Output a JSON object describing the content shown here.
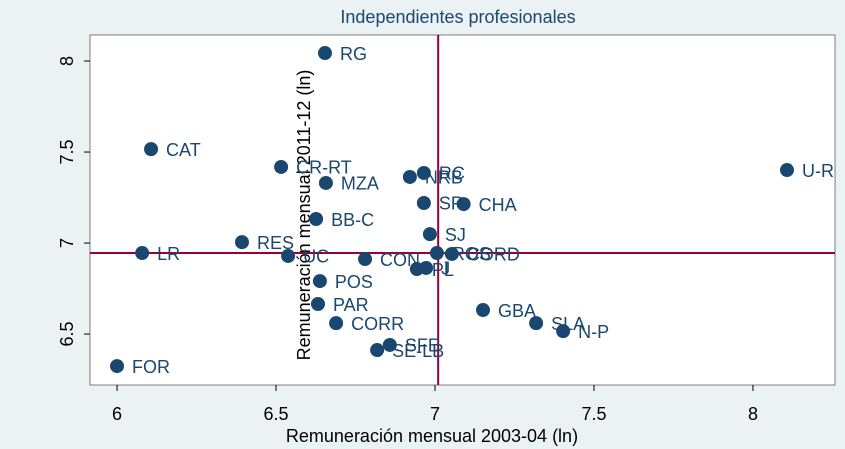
{
  "chart_data": {
    "type": "scatter",
    "title": "Independientes profesionales",
    "x_label": "Remuneración mensual 2003-04 (ln)",
    "y_label": "Remuneración mensual 2011-12 (ln)",
    "xlim": [
      5.915,
      8.258
    ],
    "ylim": [
      6.22,
      8.143
    ],
    "xticks": [
      6,
      6.5,
      7,
      7.5,
      8
    ],
    "yticks": [
      6.5,
      7,
      7.5,
      8
    ],
    "color": "#1a476f",
    "reference_color": "#990033",
    "x_reference": 7.01,
    "y_reference": 6.945,
    "labels": [
      "RG",
      "CAT",
      "CR-RT",
      "MZA",
      "U-R",
      "NRB",
      "RC",
      "SR",
      "CHA",
      "BB-C",
      "SJ",
      "RES",
      "LR",
      "UC",
      "CON",
      "PL",
      "J",
      "ROS",
      "CORD",
      "POS",
      "PAR",
      "CORR",
      "GBA",
      "SLA",
      "N-P",
      "SFE",
      "SE-LB",
      "FOR"
    ],
    "x": [
      6.654,
      6.107,
      6.516,
      6.657,
      8.107,
      6.921,
      6.965,
      6.965,
      7.09,
      6.626,
      6.984,
      6.393,
      6.079,
      6.538,
      6.78,
      6.943,
      6.972,
      7.006,
      7.053,
      6.638,
      6.632,
      6.689,
      7.151,
      7.318,
      7.403,
      6.858,
      6.818,
      6.0
    ],
    "y": [
      8.044,
      7.516,
      7.418,
      7.33,
      7.401,
      7.363,
      7.385,
      7.22,
      7.214,
      7.132,
      7.049,
      7.005,
      6.945,
      6.929,
      6.912,
      6.857,
      6.863,
      6.945,
      6.94,
      6.791,
      6.665,
      6.56,
      6.632,
      6.56,
      6.516,
      6.44,
      6.412,
      6.324
    ]
  }
}
